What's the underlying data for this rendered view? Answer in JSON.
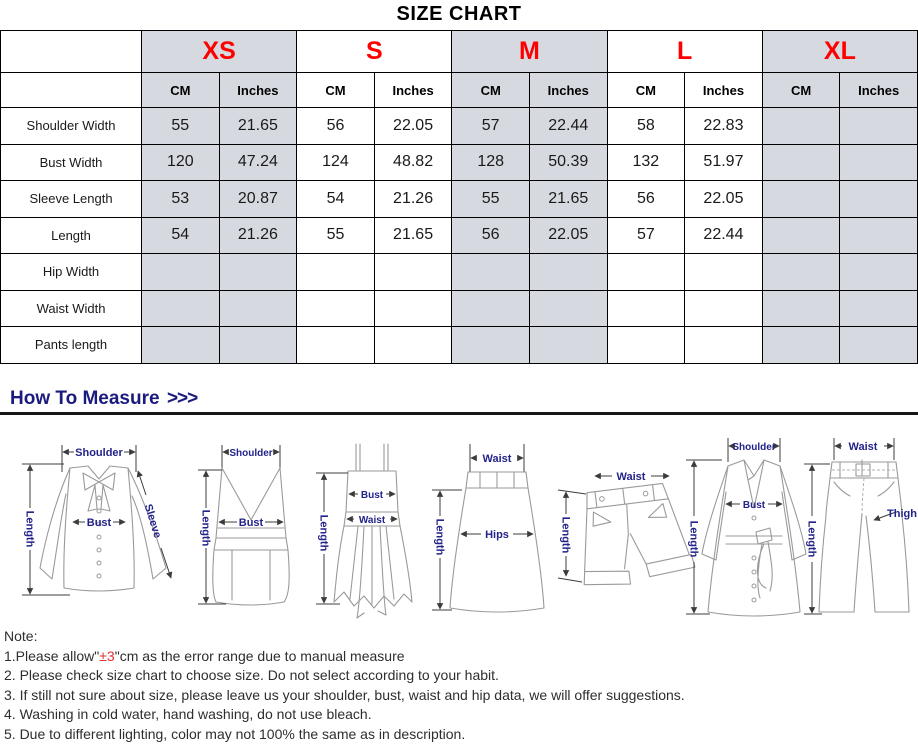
{
  "title": "SIZE CHART",
  "colors": {
    "accent_red": "#fe0000",
    "column_shade": "#d6dae0",
    "heading_navy": "#1b1b7e",
    "diagram_label_navy": "#23238a",
    "note_highlight_red": "#e03030"
  },
  "size_chart": {
    "unit_headers": [
      "CM",
      "Inches"
    ],
    "sizes": [
      {
        "label": "XS",
        "shaded": true
      },
      {
        "label": "S",
        "shaded": false
      },
      {
        "label": "M",
        "shaded": true
      },
      {
        "label": "L",
        "shaded": false
      },
      {
        "label": "XL",
        "shaded": true
      }
    ],
    "rows": [
      {
        "label": "Shoulder Width",
        "values": [
          "55",
          "21.65",
          "56",
          "22.05",
          "57",
          "22.44",
          "58",
          "22.83",
          "",
          ""
        ]
      },
      {
        "label": "Bust Width",
        "values": [
          "120",
          "47.24",
          "124",
          "48.82",
          "128",
          "50.39",
          "132",
          "51.97",
          "",
          ""
        ]
      },
      {
        "label": "Sleeve Length",
        "values": [
          "53",
          "20.87",
          "54",
          "21.26",
          "55",
          "21.65",
          "56",
          "22.05",
          "",
          ""
        ]
      },
      {
        "label": "Length",
        "values": [
          "54",
          "21.26",
          "55",
          "21.65",
          "56",
          "22.05",
          "57",
          "22.44",
          "",
          ""
        ]
      },
      {
        "label": "Hip Width",
        "values": [
          "",
          "",
          "",
          "",
          "",
          "",
          "",
          "",
          "",
          ""
        ]
      },
      {
        "label": "Waist Width",
        "values": [
          "",
          "",
          "",
          "",
          "",
          "",
          "",
          "",
          "",
          ""
        ]
      },
      {
        "label": "Pants length",
        "values": [
          "",
          "",
          "",
          "",
          "",
          "",
          "",
          "",
          "",
          ""
        ]
      }
    ]
  },
  "how_to_measure": {
    "heading": "How To Measure",
    "chevrons": ">>>"
  },
  "diagrams": [
    {
      "garment": "blouse",
      "labels": {
        "shoulder": "Shoulder",
        "bust": "Bust",
        "length": "Length",
        "sleeve": "Sleeve"
      }
    },
    {
      "garment": "tank-top",
      "labels": {
        "shoulder": "Shoulder",
        "bust": "Bust",
        "length": "Length"
      }
    },
    {
      "garment": "slip-dress",
      "labels": {
        "bust": "Bust",
        "waist": "Waist",
        "length": "Length"
      }
    },
    {
      "garment": "skirt",
      "labels": {
        "waist": "Waist",
        "hips": "Hips",
        "length": "Length"
      }
    },
    {
      "garment": "shorts",
      "labels": {
        "waist": "Waist",
        "length": "Length"
      }
    },
    {
      "garment": "coat",
      "labels": {
        "shoulder": "Shoulder",
        "bust": "Bust",
        "length": "Length"
      }
    },
    {
      "garment": "pants",
      "labels": {
        "waist": "Waist",
        "thigh": "Thigh",
        "length": "Length"
      }
    }
  ],
  "note": {
    "heading": "Note:",
    "line1": {
      "pre": "1.Please allow\"",
      "highlight": "±3",
      "post": "\"cm as the error range due to manual measure"
    },
    "lines": [
      "2. Please check size chart to choose size. Do not select according to your habit.",
      "3. If still not sure about size, please leave us your shoulder, bust, waist and hip data, we will offer suggestions.",
      "4. Washing in cold water, hand washing, do not use bleach.",
      "5. Due to different lighting, color may not 100% the same as in description."
    ]
  }
}
